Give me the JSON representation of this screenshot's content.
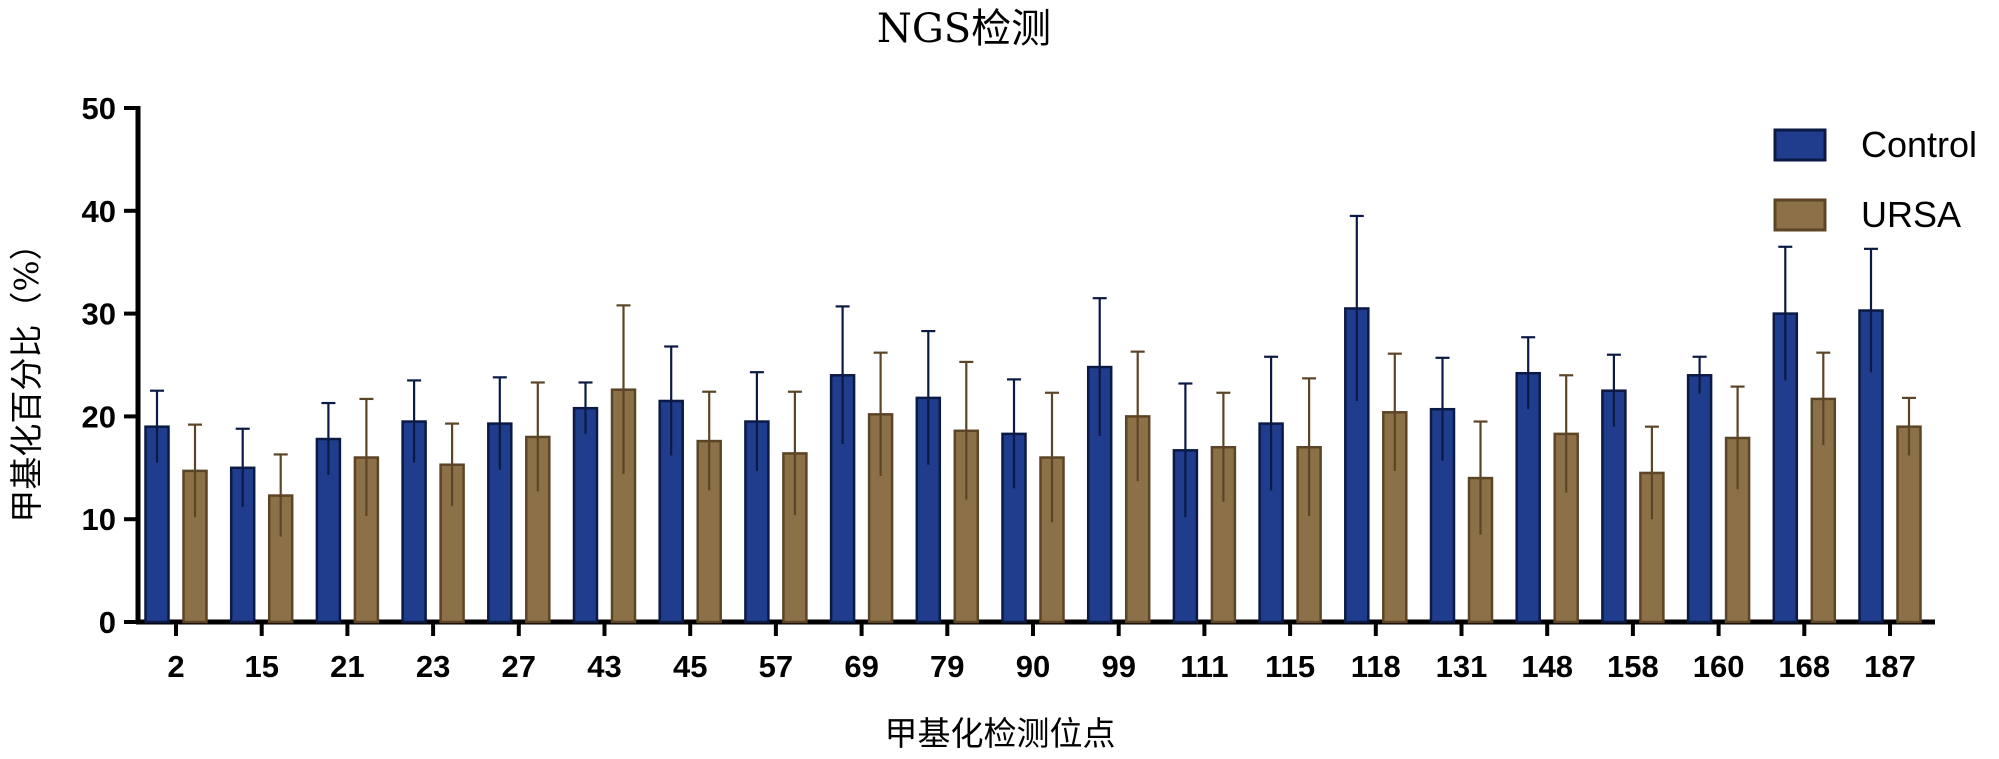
{
  "chart_data": {
    "type": "bar",
    "title": "NGS检测",
    "xlabel": "甲基化检测位点",
    "ylabel": "甲基化百分比（%）",
    "ylim": [
      0,
      50
    ],
    "yticks": [
      0,
      10,
      20,
      30,
      40,
      50
    ],
    "categories": [
      "2",
      "15",
      "21",
      "23",
      "27",
      "43",
      "45",
      "57",
      "69",
      "79",
      "90",
      "99",
      "111",
      "115",
      "118",
      "131",
      "148",
      "158",
      "160",
      "168",
      "187"
    ],
    "series": [
      {
        "name": "Control",
        "color": "#1f3d8c",
        "edge": "#0b1a45",
        "values": [
          19.0,
          15.0,
          17.8,
          19.5,
          19.3,
          20.8,
          21.5,
          19.5,
          24.0,
          21.8,
          18.3,
          24.8,
          16.7,
          19.3,
          30.5,
          20.7,
          24.2,
          22.5,
          24.0,
          30.0,
          30.3
        ],
        "errors": [
          3.5,
          3.8,
          3.5,
          4.0,
          4.5,
          2.5,
          5.3,
          4.8,
          6.7,
          6.5,
          5.3,
          6.7,
          6.5,
          6.5,
          9.0,
          5.0,
          3.5,
          3.5,
          1.8,
          6.5,
          6.0
        ]
      },
      {
        "name": "URSA",
        "color": "#8c7048",
        "edge": "#5c4526",
        "values": [
          14.7,
          12.3,
          16.0,
          15.3,
          18.0,
          22.6,
          17.6,
          16.4,
          20.2,
          18.6,
          16.0,
          20.0,
          17.0,
          17.0,
          20.4,
          14.0,
          18.3,
          14.5,
          17.9,
          21.7,
          19.0
        ],
        "errors": [
          4.5,
          4.0,
          5.7,
          4.0,
          5.3,
          8.2,
          4.8,
          6.0,
          6.0,
          6.7,
          6.3,
          6.3,
          5.3,
          6.7,
          5.7,
          5.5,
          5.7,
          4.5,
          5.0,
          4.5,
          2.8
        ]
      }
    ],
    "legend_position": "top-right",
    "grid": false
  }
}
